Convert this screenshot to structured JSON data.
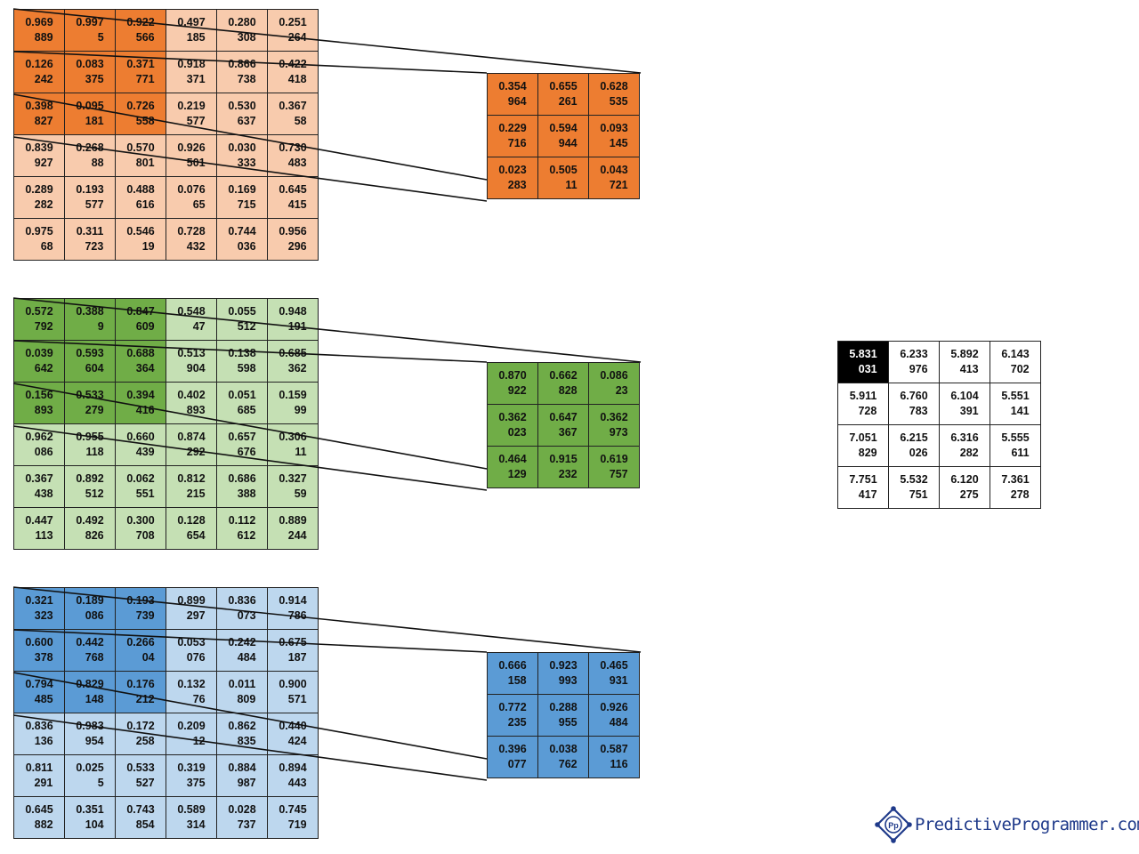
{
  "colors": {
    "orange_dark": "#ed7d31",
    "orange_light": "#f8cbad",
    "green_dark": "#70ad47",
    "green_light": "#c5e0b4",
    "blue_dark": "#5b9bd5",
    "blue_light": "#bdd7ee",
    "output_highlight": "#000000"
  },
  "input_channels": [
    {
      "name": "orange",
      "cells": [
        [
          "0.969\n889",
          "0.997\n5",
          "0.922\n566",
          "0.497\n185",
          "0.280\n308",
          "0.251\n264"
        ],
        [
          "0.126\n242",
          "0.083\n375",
          "0.371\n771",
          "0.918\n371",
          "0.866\n738",
          "0.422\n418"
        ],
        [
          "0.398\n827",
          "0.095\n181",
          "0.726\n558",
          "0.219\n577",
          "0.530\n637",
          "0.367\n58"
        ],
        [
          "0.839\n927",
          "0.268\n88",
          "0.570\n801",
          "0.926\n501",
          "0.030\n333",
          "0.730\n483"
        ],
        [
          "0.289\n282",
          "0.193\n577",
          "0.488\n616",
          "0.076\n65",
          "0.169\n715",
          "0.645\n415"
        ],
        [
          "0.975\n68",
          "0.311\n723",
          "0.546\n19",
          "0.728\n432",
          "0.744\n036",
          "0.956\n296"
        ]
      ]
    },
    {
      "name": "green",
      "cells": [
        [
          "0.572\n792",
          "0.388\n9",
          "0.847\n609",
          "0.548\n47",
          "0.055\n512",
          "0.948\n191"
        ],
        [
          "0.039\n642",
          "0.593\n604",
          "0.688\n364",
          "0.513\n904",
          "0.138\n598",
          "0.685\n362"
        ],
        [
          "0.156\n893",
          "0.533\n279",
          "0.394\n416",
          "0.402\n893",
          "0.051\n685",
          "0.159\n99"
        ],
        [
          "0.962\n086",
          "0.955\n118",
          "0.660\n439",
          "0.874\n292",
          "0.657\n676",
          "0.306\n11"
        ],
        [
          "0.367\n438",
          "0.892\n512",
          "0.062\n551",
          "0.812\n215",
          "0.686\n388",
          "0.327\n59"
        ],
        [
          "0.447\n113",
          "0.492\n826",
          "0.300\n708",
          "0.128\n654",
          "0.112\n612",
          "0.889\n244"
        ]
      ]
    },
    {
      "name": "blue",
      "cells": [
        [
          "0.321\n323",
          "0.189\n086",
          "0.193\n739",
          "0.899\n297",
          "0.836\n073",
          "0.914\n786"
        ],
        [
          "0.600\n378",
          "0.442\n768",
          "0.266\n04",
          "0.053\n076",
          "0.242\n484",
          "0.675\n187"
        ],
        [
          "0.794\n485",
          "0.829\n148",
          "0.176\n212",
          "0.132\n76",
          "0.011\n809",
          "0.900\n571"
        ],
        [
          "0.836\n136",
          "0.983\n954",
          "0.172\n258",
          "0.209\n12",
          "0.862\n835",
          "0.440\n424"
        ],
        [
          "0.811\n291",
          "0.025\n5",
          "0.533\n527",
          "0.319\n375",
          "0.884\n987",
          "0.894\n443"
        ],
        [
          "0.645\n882",
          "0.351\n104",
          "0.743\n854",
          "0.589\n314",
          "0.028\n737",
          "0.745\n719"
        ]
      ]
    }
  ],
  "kernels": [
    {
      "name": "orange",
      "cells": [
        [
          "0.354\n964",
          "0.655\n261",
          "0.628\n535"
        ],
        [
          "0.229\n716",
          "0.594\n944",
          "0.093\n145"
        ],
        [
          "0.023\n283",
          "0.505\n11",
          "0.043\n721"
        ]
      ]
    },
    {
      "name": "green",
      "cells": [
        [
          "0.870\n922",
          "0.662\n828",
          "0.086\n23"
        ],
        [
          "0.362\n023",
          "0.647\n367",
          "0.362\n973"
        ],
        [
          "0.464\n129",
          "0.915\n232",
          "0.619\n757"
        ]
      ]
    },
    {
      "name": "blue",
      "cells": [
        [
          "0.666\n158",
          "0.923\n993",
          "0.465\n931"
        ],
        [
          "0.772\n235",
          "0.288\n955",
          "0.926\n484"
        ],
        [
          "0.396\n077",
          "0.038\n762",
          "0.587\n116"
        ]
      ]
    }
  ],
  "output": {
    "highlighted": [
      0,
      0
    ],
    "cells": [
      [
        "5.831\n031",
        "6.233\n976",
        "5.892\n413",
        "6.143\n702"
      ],
      [
        "5.911\n728",
        "6.760\n783",
        "6.104\n391",
        "5.551\n141"
      ],
      [
        "7.051\n829",
        "6.215\n026",
        "6.316\n282",
        "5.555\n611"
      ],
      [
        "7.751\n417",
        "5.532\n751",
        "6.120\n275",
        "7.361\n278"
      ]
    ]
  },
  "logo": {
    "text": "PredictiveProgrammer.com",
    "mark": "Pp"
  }
}
